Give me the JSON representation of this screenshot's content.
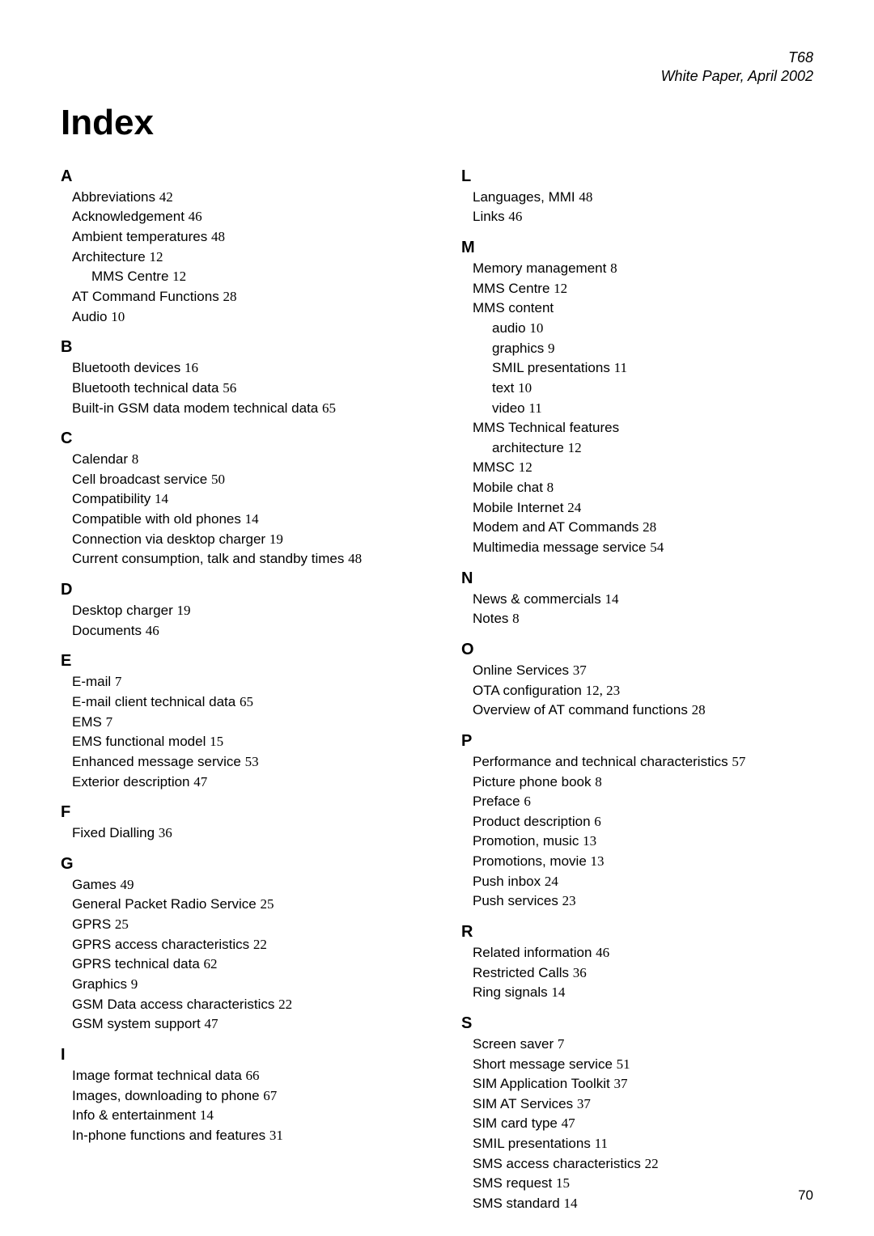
{
  "header": {
    "line1": "T68",
    "line2": "White Paper, April 2002"
  },
  "title": "Index",
  "footer": "70",
  "left": [
    {
      "type": "letter",
      "text": "A"
    },
    {
      "type": "entry",
      "label": "Abbreviations",
      "page": "42"
    },
    {
      "type": "entry",
      "label": "Acknowledgement",
      "page": "46"
    },
    {
      "type": "entry",
      "label": "Ambient temperatures",
      "page": "48"
    },
    {
      "type": "entry",
      "label": "Architecture",
      "page": "12"
    },
    {
      "type": "sub",
      "label": "MMS Centre",
      "page": "12"
    },
    {
      "type": "entry",
      "label": "AT Command Functions",
      "page": "28"
    },
    {
      "type": "entry",
      "label": "Audio",
      "page": "10"
    },
    {
      "type": "letter",
      "text": "B"
    },
    {
      "type": "entry",
      "label": "Bluetooth devices",
      "page": "16"
    },
    {
      "type": "entry",
      "label": "Bluetooth technical data",
      "page": "56"
    },
    {
      "type": "entry",
      "label": "Built-in GSM data modem technical data",
      "page": "65"
    },
    {
      "type": "letter",
      "text": "C"
    },
    {
      "type": "entry",
      "label": "Calendar",
      "page": "8"
    },
    {
      "type": "entry",
      "label": "Cell broadcast service",
      "page": "50"
    },
    {
      "type": "entry",
      "label": "Compatibility",
      "page": "14"
    },
    {
      "type": "entry",
      "label": "Compatible with old phones",
      "page": "14"
    },
    {
      "type": "entry",
      "label": "Connection via desktop charger",
      "page": "19"
    },
    {
      "type": "entry",
      "label": "Current consumption, talk and standby times",
      "page": "48"
    },
    {
      "type": "letter",
      "text": "D"
    },
    {
      "type": "entry",
      "label": "Desktop charger",
      "page": "19"
    },
    {
      "type": "entry",
      "label": "Documents",
      "page": "46"
    },
    {
      "type": "letter",
      "text": "E"
    },
    {
      "type": "entry",
      "label": "E-mail",
      "page": "7"
    },
    {
      "type": "entry",
      "label": "E-mail client technical data",
      "page": "65"
    },
    {
      "type": "entry",
      "label": "EMS",
      "page": "7"
    },
    {
      "type": "entry",
      "label": "EMS functional model",
      "page": "15"
    },
    {
      "type": "entry",
      "label": "Enhanced message service",
      "page": "53"
    },
    {
      "type": "entry",
      "label": "Exterior description",
      "page": "47"
    },
    {
      "type": "letter",
      "text": "F"
    },
    {
      "type": "entry",
      "label": "Fixed Dialling",
      "page": "36"
    },
    {
      "type": "letter",
      "text": "G"
    },
    {
      "type": "entry",
      "label": "Games",
      "page": "49"
    },
    {
      "type": "entry",
      "label": "General Packet Radio Service",
      "page": "25"
    },
    {
      "type": "entry",
      "label": "GPRS",
      "page": "25"
    },
    {
      "type": "entry",
      "label": "GPRS access characteristics",
      "page": "22"
    },
    {
      "type": "entry",
      "label": "GPRS technical data",
      "page": "62"
    },
    {
      "type": "entry",
      "label": "Graphics",
      "page": "9"
    },
    {
      "type": "entry",
      "label": "GSM Data access characteristics",
      "page": "22"
    },
    {
      "type": "entry",
      "label": "GSM system support",
      "page": "47"
    },
    {
      "type": "letter",
      "text": "I"
    },
    {
      "type": "entry",
      "label": "Image format technical data",
      "page": "66"
    },
    {
      "type": "entry",
      "label": "Images, downloading to phone",
      "page": "67"
    },
    {
      "type": "entry",
      "label": "Info & entertainment",
      "page": "14"
    },
    {
      "type": "entry",
      "label": "In-phone functions and features",
      "page": "31"
    }
  ],
  "right": [
    {
      "type": "letter",
      "text": "L"
    },
    {
      "type": "entry",
      "label": "Languages, MMI",
      "page": "48"
    },
    {
      "type": "entry",
      "label": "Links",
      "page": "46"
    },
    {
      "type": "letter",
      "text": "M"
    },
    {
      "type": "entry",
      "label": "Memory management",
      "page": "8"
    },
    {
      "type": "entry",
      "label": "MMS Centre",
      "page": "12"
    },
    {
      "type": "entry",
      "label": "MMS content",
      "page": ""
    },
    {
      "type": "sub",
      "label": "audio",
      "page": "10"
    },
    {
      "type": "sub",
      "label": "graphics",
      "page": "9"
    },
    {
      "type": "sub",
      "label": "SMIL presentations",
      "page": "11"
    },
    {
      "type": "sub",
      "label": "text",
      "page": "10"
    },
    {
      "type": "sub",
      "label": "video",
      "page": "11"
    },
    {
      "type": "entry",
      "label": "MMS Technical features",
      "page": ""
    },
    {
      "type": "sub",
      "label": "architecture",
      "page": "12"
    },
    {
      "type": "entry",
      "label": "MMSC",
      "page": "12"
    },
    {
      "type": "entry",
      "label": "Mobile chat",
      "page": "8"
    },
    {
      "type": "entry",
      "label": "Mobile Internet",
      "page": "24"
    },
    {
      "type": "entry",
      "label": "Modem and AT Commands",
      "page": "28"
    },
    {
      "type": "entry",
      "label": "Multimedia message service",
      "page": "54"
    },
    {
      "type": "letter",
      "text": "N"
    },
    {
      "type": "entry",
      "label": "News & commercials",
      "page": "14"
    },
    {
      "type": "entry",
      "label": "Notes",
      "page": "8"
    },
    {
      "type": "letter",
      "text": "O"
    },
    {
      "type": "entry",
      "label": "Online Services",
      "page": "37"
    },
    {
      "type": "entry",
      "label": "OTA configuration",
      "page": "12, 23"
    },
    {
      "type": "entry",
      "label": "Overview of AT command functions",
      "page": "28"
    },
    {
      "type": "letter",
      "text": "P"
    },
    {
      "type": "entry",
      "label": "Performance and technical characteristics",
      "page": "57"
    },
    {
      "type": "entry",
      "label": "Picture phone book",
      "page": "8"
    },
    {
      "type": "entry",
      "label": "Preface",
      "page": "6"
    },
    {
      "type": "entry",
      "label": "Product description",
      "page": "6"
    },
    {
      "type": "entry",
      "label": "Promotion, music",
      "page": "13"
    },
    {
      "type": "entry",
      "label": "Promotions, movie",
      "page": "13"
    },
    {
      "type": "entry",
      "label": "Push inbox",
      "page": "24"
    },
    {
      "type": "entry",
      "label": "Push services",
      "page": "23"
    },
    {
      "type": "letter",
      "text": "R"
    },
    {
      "type": "entry",
      "label": "Related information",
      "page": "46"
    },
    {
      "type": "entry",
      "label": "Restricted Calls",
      "page": "36"
    },
    {
      "type": "entry",
      "label": "Ring signals",
      "page": "14"
    },
    {
      "type": "letter",
      "text": "S"
    },
    {
      "type": "entry",
      "label": "Screen saver",
      "page": "7"
    },
    {
      "type": "entry",
      "label": "Short message service",
      "page": "51"
    },
    {
      "type": "entry",
      "label": "SIM Application Toolkit",
      "page": "37"
    },
    {
      "type": "entry",
      "label": "SIM AT Services",
      "page": "37"
    },
    {
      "type": "entry",
      "label": "SIM card type",
      "page": "47"
    },
    {
      "type": "entry",
      "label": "SMIL presentations",
      "page": "11"
    },
    {
      "type": "entry",
      "label": "SMS access characteristics",
      "page": "22"
    },
    {
      "type": "entry",
      "label": "SMS request",
      "page": "15"
    },
    {
      "type": "entry",
      "label": "SMS standard",
      "page": "14"
    }
  ]
}
